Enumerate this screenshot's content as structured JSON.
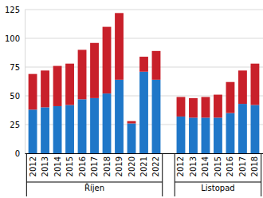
{
  "chart_data": {
    "type": "bar",
    "stacked": true,
    "grid": true,
    "categories": [
      "2012",
      "2013",
      "2014",
      "2015",
      "2016",
      "2017",
      "2018",
      "2019",
      "2020",
      "2021",
      "2022",
      null,
      "2012",
      "2013",
      "2014",
      "2015",
      "2016",
      "2017",
      "2018"
    ],
    "groups": [
      "Říjen",
      "Listopad"
    ],
    "series": [
      {
        "color": "#1f77c8",
        "values": [
          38,
          40,
          41,
          42,
          47,
          48,
          52,
          64,
          26,
          71,
          64,
          null,
          32,
          31,
          31,
          31,
          35,
          43,
          42
        ]
      },
      {
        "color": "#c8202a",
        "values": [
          31,
          32,
          35,
          36,
          43,
          48,
          58,
          58,
          2,
          13,
          25,
          null,
          17,
          17,
          18,
          20,
          27,
          29,
          36
        ]
      }
    ],
    "ylim": [
      0,
      125
    ],
    "yticks": [
      0,
      25,
      50,
      75,
      100,
      125
    ]
  }
}
